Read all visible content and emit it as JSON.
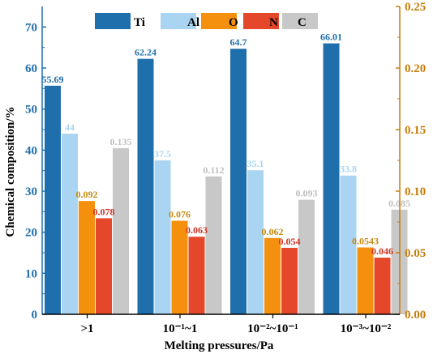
{
  "chart_data": {
    "type": "bar",
    "xlabel": "Melting pressures/Pa",
    "ylabel": "Chemical composition/%",
    "ylim": [
      0,
      75
    ],
    "y2lim": [
      0,
      0.25
    ],
    "yticks": [
      0,
      10,
      20,
      30,
      40,
      50,
      60,
      70
    ],
    "y2ticks": [
      "0.00",
      "0.05",
      "0.10",
      "0.15",
      "0.20",
      "0.25"
    ],
    "categories": [
      ">1",
      "10⁻¹~1",
      "10⁻²~10⁻¹",
      "10⁻³~10⁻²"
    ],
    "legend_position": "top",
    "series": [
      {
        "name": "Ti",
        "axis": "left",
        "color": "#1f6fad",
        "values": [
          55.69,
          62.24,
          64.7,
          66.01
        ],
        "labels": [
          "55.69",
          "62.24",
          "64.7",
          "66.01"
        ]
      },
      {
        "name": "Al",
        "axis": "left",
        "color": "#a9d5f3",
        "values": [
          44,
          37.5,
          35.1,
          33.8
        ],
        "labels": [
          "44",
          "37.5",
          "35.1",
          "33.8"
        ]
      },
      {
        "name": "O",
        "axis": "right",
        "color": "#f5900f",
        "values": [
          0.092,
          0.076,
          0.062,
          0.0543
        ],
        "labels": [
          "0.092",
          "0.076",
          "0.062",
          "0.0543"
        ]
      },
      {
        "name": "N",
        "axis": "right",
        "color": "#e5472a",
        "values": [
          0.078,
          0.063,
          0.054,
          0.046
        ],
        "labels": [
          "0.078",
          "0.063",
          "0.054",
          "0.046"
        ]
      },
      {
        "name": "C",
        "axis": "right",
        "color": "#c8c8c8",
        "values": [
          0.135,
          0.112,
          0.093,
          0.085
        ],
        "labels": [
          "0.135",
          "0.112",
          "0.093",
          "0.085"
        ]
      }
    ],
    "colors": {
      "left_axis": "#1f6fad",
      "right_axis": "#c67d0a",
      "label_orange": "#c68a10",
      "label_red": "#cc3322",
      "label_gray": "#bfbfbf"
    }
  }
}
